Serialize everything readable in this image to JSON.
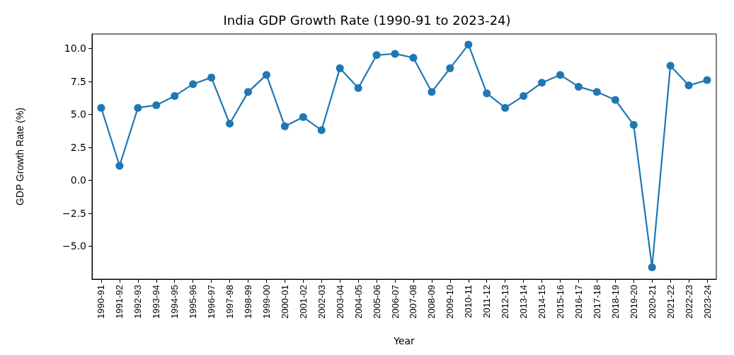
{
  "chart_data": {
    "type": "line",
    "title": "India GDP Growth Rate (1990-91 to 2023-24)",
    "xlabel": "Year",
    "ylabel": "GDP Growth Rate (%)",
    "categories": [
      "1990-91",
      "1991-92",
      "1992-93",
      "1993-94",
      "1994-95",
      "1995-96",
      "1996-97",
      "1997-98",
      "1998-99",
      "1999-00",
      "2000-01",
      "2001-02",
      "2002-03",
      "2003-04",
      "2004-05",
      "2005-06",
      "2006-07",
      "2007-08",
      "2008-09",
      "2009-10",
      "2010-11",
      "2011-12",
      "2012-13",
      "2013-14",
      "2014-15",
      "2015-16",
      "2016-17",
      "2017-18",
      "2018-19",
      "2019-20",
      "2020-21",
      "2021-22",
      "2022-23",
      "2023-24"
    ],
    "series": [
      {
        "color": "#1f77b4",
        "values": [
          5.5,
          1.1,
          5.5,
          5.7,
          6.4,
          7.3,
          7.8,
          4.3,
          6.7,
          8.0,
          4.1,
          4.8,
          3.8,
          8.5,
          7.0,
          9.5,
          9.6,
          9.3,
          6.7,
          8.5,
          10.3,
          6.6,
          5.5,
          6.4,
          7.4,
          8.0,
          7.1,
          6.7,
          6.1,
          4.2,
          -6.6,
          8.7,
          7.2,
          7.6
        ]
      }
    ],
    "ylim": [
      -7.5,
      11.1
    ],
    "yticks": [
      {
        "value": -5,
        "label": "−5.0"
      },
      {
        "value": -2.5,
        "label": "−2.5"
      },
      {
        "value": 0,
        "label": "0.0"
      },
      {
        "value": 2.5,
        "label": "2.5"
      },
      {
        "value": 5,
        "label": "5.0"
      },
      {
        "value": 7.5,
        "label": "7.5"
      },
      {
        "value": 10,
        "label": "10.0"
      }
    ],
    "grid": false,
    "marker": "circle",
    "line_style": "solid"
  }
}
